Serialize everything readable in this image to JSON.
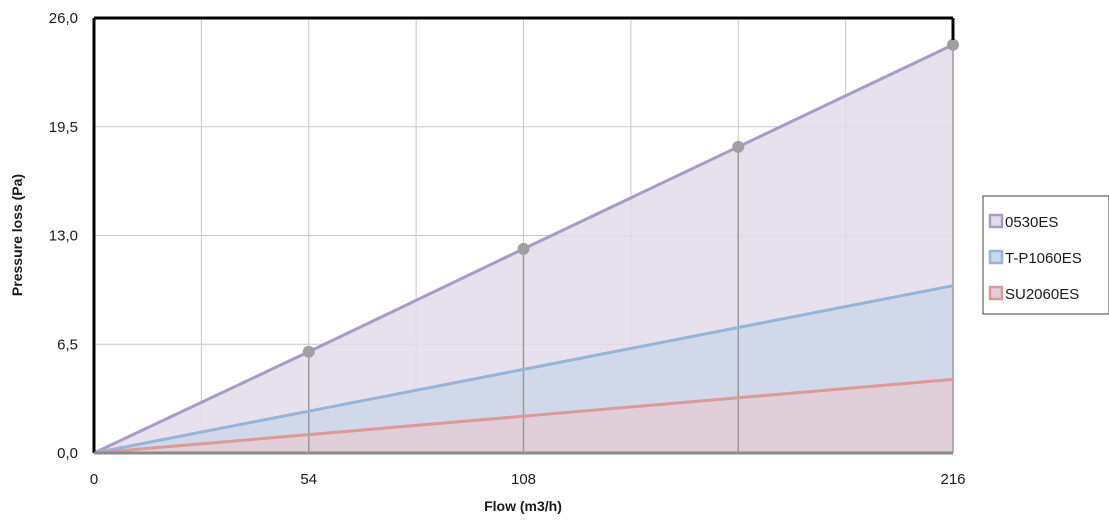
{
  "chart_data": {
    "type": "area",
    "title": "",
    "xlabel": "Flow (m3/h)",
    "ylabel": "Pressure loss (Pa)",
    "xlim": [
      0,
      216
    ],
    "ylim": [
      0,
      26
    ],
    "x_ticks": [
      "0",
      "54",
      "108",
      "216"
    ],
    "x_tick_values": [
      0,
      54,
      108,
      216
    ],
    "y_ticks": [
      "0,0",
      "6,5",
      "13,0",
      "19,5",
      "26,0"
    ],
    "y_tick_values": [
      0,
      6.5,
      13,
      19.5,
      26
    ],
    "x_gridlines": [
      0,
      27,
      54,
      81,
      108,
      135,
      162,
      189,
      216
    ],
    "grid": true,
    "legend_position": "right",
    "x": [
      0,
      54,
      108,
      162,
      216
    ],
    "series": [
      {
        "name": "0530ES",
        "values": [
          0,
          6.05,
          12.2,
          18.3,
          24.4
        ],
        "line_color": "#a89bc8",
        "fill_color": "#e3dcea",
        "markers": true,
        "marker_color": "#a0a0a0"
      },
      {
        "name": "T-P1060ES",
        "values": [
          0,
          2.5,
          5.0,
          7.5,
          10.0
        ],
        "line_color": "#94b5d8",
        "fill_color": "#ccd6e9",
        "markers": false
      },
      {
        "name": "SU2060ES",
        "values": [
          0,
          1.1,
          2.2,
          3.3,
          4.4
        ],
        "line_color": "#da9a9a",
        "fill_color": "#e3cdd6",
        "markers": false
      }
    ]
  }
}
